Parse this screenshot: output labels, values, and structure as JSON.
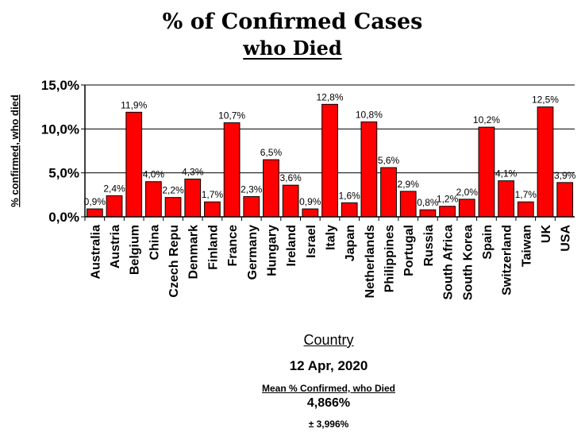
{
  "chart_data": {
    "type": "bar",
    "title": "% of Confirmed Cases",
    "subtitle": "who Died",
    "xlabel": "Country",
    "ylabel": "% confirmed, who died",
    "ylim": [
      0,
      15
    ],
    "yticks": [
      "0,0%",
      "5,0%",
      "10,0%",
      "15,0%"
    ],
    "categories": [
      "Australia",
      "Austria",
      "Belgium",
      "China",
      "Czech Repu",
      "Denmark",
      "Finland",
      "France",
      "Germany",
      "Hungary",
      "Ireland",
      "Israel",
      "Italy",
      "Japan",
      "Netherlands",
      "Philippines",
      "Portugal",
      "Russia",
      "South Africa",
      "South Korea",
      "Spain",
      "Switzerland",
      "Taiwan",
      "UK",
      "USA"
    ],
    "values": [
      0.9,
      2.4,
      11.9,
      4.0,
      2.2,
      4.3,
      1.7,
      10.7,
      2.3,
      6.5,
      3.6,
      0.9,
      12.8,
      1.6,
      10.8,
      5.6,
      2.9,
      0.8,
      1.2,
      2.0,
      10.2,
      4.1,
      1.7,
      12.5,
      3.9
    ],
    "labels": [
      "0,9%",
      "2,4%",
      "11,9%",
      "4,0%",
      "2,2%",
      "4,3%",
      "1,7%",
      "10,7%",
      "2,3%",
      "6,5%",
      "3,6%",
      "0,9%",
      "12,8%",
      "1,6%",
      "10,8%",
      "5,6%",
      "2,9%",
      "0,8%",
      "1,2%",
      "2,0%",
      "10,2%",
      "4,1%",
      "1,7%",
      "12,5%",
      "3,9%"
    ],
    "bar_color": "#ff0000",
    "grid": true,
    "legend": "none"
  },
  "footer": {
    "date": "12 Apr, 2020",
    "mean_label": "Mean % Confirmed, who Died",
    "mean_value": "4,866%",
    "mean_sd": "± 3,996%"
  }
}
